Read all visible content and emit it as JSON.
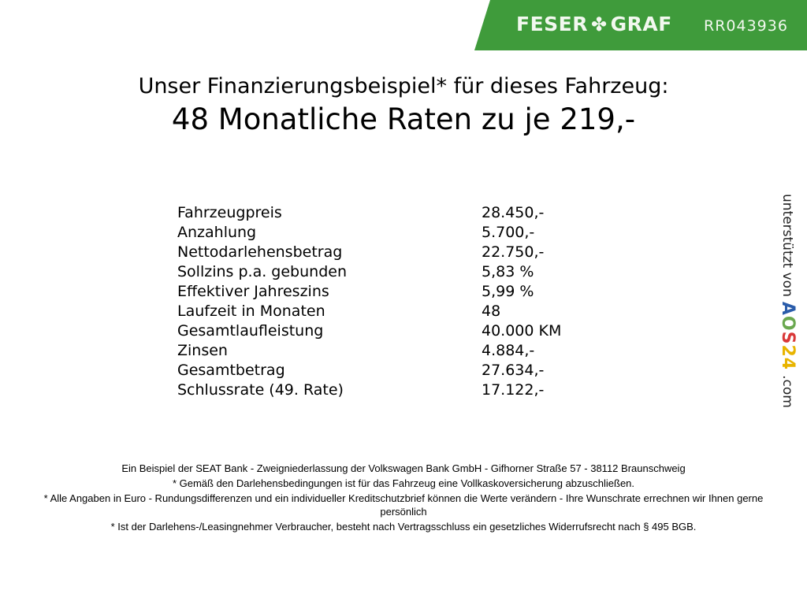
{
  "header": {
    "brand": "FESER",
    "brand2": "GRAF",
    "clover_icon": "clover-icon",
    "reference": "RR043936",
    "color": "#3f9b3b"
  },
  "title": {
    "line1": "Unser Finanzierungsbeispiel* für dieses Fahrzeug:",
    "line2": "48 Monatliche Raten zu je 219,-"
  },
  "rows": [
    {
      "label": "Fahrzeugpreis",
      "value": "28.450,-"
    },
    {
      "label": "Anzahlung",
      "value": "5.700,-"
    },
    {
      "label": "Nettodarlehensbetrag",
      "value": "22.750,-"
    },
    {
      "label": "Sollzins p.a. gebunden",
      "value": "5,83 %"
    },
    {
      "label": "Effektiver Jahreszins",
      "value": "5,99 %"
    },
    {
      "label": "Laufzeit in Monaten",
      "value": "48"
    },
    {
      "label": "Gesamtlaufleistung",
      "value": "40.000 KM"
    },
    {
      "label": "Zinsen",
      "value": "4.884,-"
    },
    {
      "label": "Gesamtbetrag",
      "value": "27.634,-"
    },
    {
      "label": "Schlussrate (49. Rate)",
      "value": "17.122,-"
    }
  ],
  "side": {
    "text": "unterstützt von",
    "logo": "AOS24",
    "suffix": ".com"
  },
  "footer": [
    "Ein Beispiel der SEAT Bank - Zweigniederlassung der Volkswagen Bank GmbH - Gifhorner Straße 57 - 38112 Braunschweig",
    "* Gemäß den Darlehensbedingungen ist für das Fahrzeug eine Vollkaskoversicherung abzuschließen.",
    "* Alle Angaben in Euro - Rundungsdifferenzen und ein individueller Kreditschutzbrief können die Werte verändern - Ihre Wunschrate errechnen wir Ihnen gerne persönlich",
    "* Ist der Darlehens-/Leasingnehmer Verbraucher, besteht nach Vertragsschluss ein gesetzliches Widerrufsrecht nach § 495 BGB."
  ]
}
